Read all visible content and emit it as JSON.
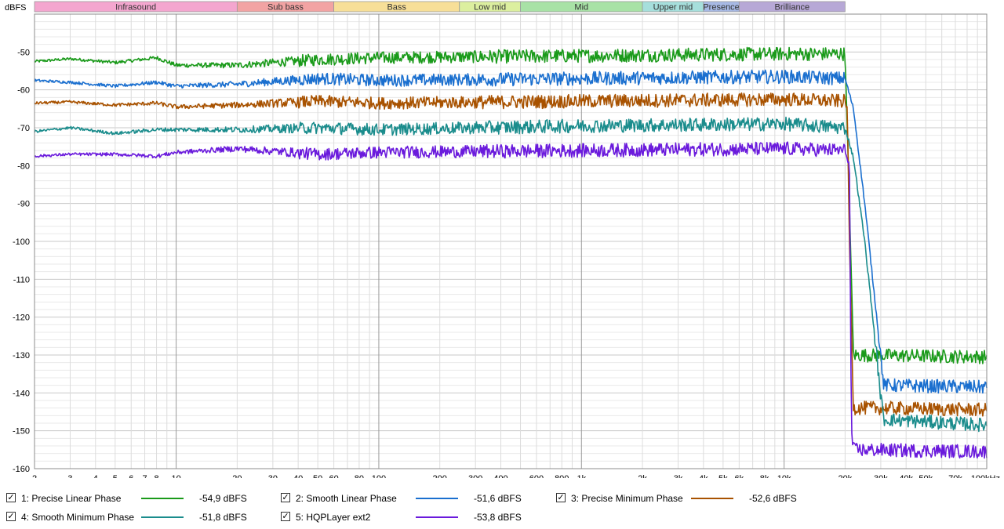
{
  "chart_data": {
    "type": "line",
    "ylabel": "dBFS",
    "xlabel": "",
    "x_unit_label": "Hz",
    "x_scale": "log",
    "xlim": [
      2,
      100000
    ],
    "ylim": [
      -160,
      -40
    ],
    "grid": true,
    "legend_position": "bottom",
    "y_ticks": [
      -50,
      -60,
      -70,
      -80,
      -90,
      -100,
      -110,
      -120,
      -130,
      -140,
      -150,
      -160
    ],
    "x_ticks": [
      {
        "v": 2,
        "label": "2"
      },
      {
        "v": 3,
        "label": "3"
      },
      {
        "v": 4,
        "label": "4"
      },
      {
        "v": 5,
        "label": "5"
      },
      {
        "v": 6,
        "label": "6"
      },
      {
        "v": 7,
        "label": "7"
      },
      {
        "v": 8,
        "label": "8"
      },
      {
        "v": 10,
        "label": "10"
      },
      {
        "v": 20,
        "label": "20"
      },
      {
        "v": 30,
        "label": "30"
      },
      {
        "v": 40,
        "label": "40"
      },
      {
        "v": 50,
        "label": "50"
      },
      {
        "v": 60,
        "label": "60"
      },
      {
        "v": 80,
        "label": "80"
      },
      {
        "v": 100,
        "label": "100"
      },
      {
        "v": 200,
        "label": "200"
      },
      {
        "v": 300,
        "label": "300"
      },
      {
        "v": 400,
        "label": "400"
      },
      {
        "v": 600,
        "label": "600"
      },
      {
        "v": 800,
        "label": "800"
      },
      {
        "v": 1000,
        "label": "1k"
      },
      {
        "v": 2000,
        "label": "2k"
      },
      {
        "v": 3000,
        "label": "3k"
      },
      {
        "v": 4000,
        "label": "4k"
      },
      {
        "v": 5000,
        "label": "5k"
      },
      {
        "v": 6000,
        "label": "6k"
      },
      {
        "v": 8000,
        "label": "8k"
      },
      {
        "v": 10000,
        "label": "10k"
      },
      {
        "v": 20000,
        "label": "20k"
      },
      {
        "v": 30000,
        "label": "30k"
      },
      {
        "v": 40000,
        "label": "40k"
      },
      {
        "v": 50000,
        "label": "50k"
      },
      {
        "v": 70000,
        "label": "70k"
      },
      {
        "v": 100000,
        "label": "100kHz"
      }
    ],
    "bands": [
      {
        "name": "Infrasound",
        "from": 2,
        "to": 20,
        "color": "#f4a6cf"
      },
      {
        "name": "Sub bass",
        "from": 20,
        "to": 60,
        "color": "#f2a3a3"
      },
      {
        "name": "Bass",
        "from": 60,
        "to": 250,
        "color": "#f7df98"
      },
      {
        "name": "Low mid",
        "from": 250,
        "to": 500,
        "color": "#dcef9f"
      },
      {
        "name": "Mid",
        "from": 500,
        "to": 2000,
        "color": "#a8e2a6"
      },
      {
        "name": "Upper mid",
        "from": 2000,
        "to": 4000,
        "color": "#a6dfdc"
      },
      {
        "name": "Presence",
        "from": 4000,
        "to": 6000,
        "color": "#a7b9e4"
      },
      {
        "name": "Brilliance",
        "from": 6000,
        "to": 20000,
        "color": "#b7a8d6"
      }
    ],
    "series": [
      {
        "name": "1: Precise Linear Phase",
        "color": "#1a9a1a",
        "value_label": "-54,9 dBFS",
        "x": [
          2,
          3,
          5,
          8,
          10,
          20,
          50,
          100,
          1000,
          10000,
          20000,
          21000,
          22000,
          100000
        ],
        "y": [
          -52.5,
          -51.8,
          -52.8,
          -51.5,
          -53.5,
          -53.5,
          -52,
          -51.5,
          -51,
          -50.5,
          -50.5,
          -90,
          -130,
          -130.5
        ]
      },
      {
        "name": "2: Smooth Linear Phase",
        "color": "#1a6fcf",
        "value_label": "-51,6 dBFS",
        "x": [
          2,
          3,
          5,
          8,
          10,
          20,
          50,
          100,
          1000,
          10000,
          20000,
          22000,
          25000,
          28000,
          30000,
          31000,
          100000
        ],
        "y": [
          -57.5,
          -58,
          -59,
          -58,
          -59,
          -58.5,
          -57,
          -57.5,
          -57,
          -56.5,
          -57,
          -65,
          -90,
          -115,
          -130,
          -138,
          -138.5
        ]
      },
      {
        "name": "3: Precise Minimum Phase",
        "color": "#a85200",
        "value_label": "-52,6 dBFS",
        "x": [
          2,
          3,
          5,
          8,
          10,
          20,
          50,
          100,
          1000,
          10000,
          20000,
          20500,
          21000,
          22000,
          30000,
          100000
        ],
        "y": [
          -63.5,
          -63.2,
          -64,
          -63.5,
          -64.5,
          -64,
          -63,
          -63.5,
          -63,
          -62.5,
          -63,
          -65,
          -100,
          -144,
          -144,
          -144.5
        ]
      },
      {
        "name": "4: Smooth Minimum Phase",
        "color": "#1a8c8c",
        "value_label": "-51,8 dBFS",
        "x": [
          2,
          3,
          5,
          8,
          10,
          20,
          50,
          100,
          1000,
          10000,
          20000,
          22000,
          25000,
          28000,
          30000,
          31000,
          100000
        ],
        "y": [
          -71,
          -70,
          -71.5,
          -70.5,
          -70.5,
          -70.5,
          -70,
          -70.5,
          -69.5,
          -69,
          -70,
          -78,
          -100,
          -125,
          -141,
          -147,
          -148.5
        ]
      },
      {
        "name": "5: HQPLayer ext2",
        "color": "#6a1adc",
        "value_label": "-53,8 dBFS",
        "x": [
          2,
          3,
          5,
          8,
          10,
          20,
          50,
          100,
          1000,
          10000,
          20000,
          21000,
          21500,
          22000,
          100000
        ],
        "y": [
          -77.5,
          -77,
          -77,
          -77.5,
          -76.5,
          -75.5,
          -77,
          -76.5,
          -76,
          -75.5,
          -76,
          -80,
          -150,
          -155,
          -155.5
        ]
      }
    ]
  }
}
